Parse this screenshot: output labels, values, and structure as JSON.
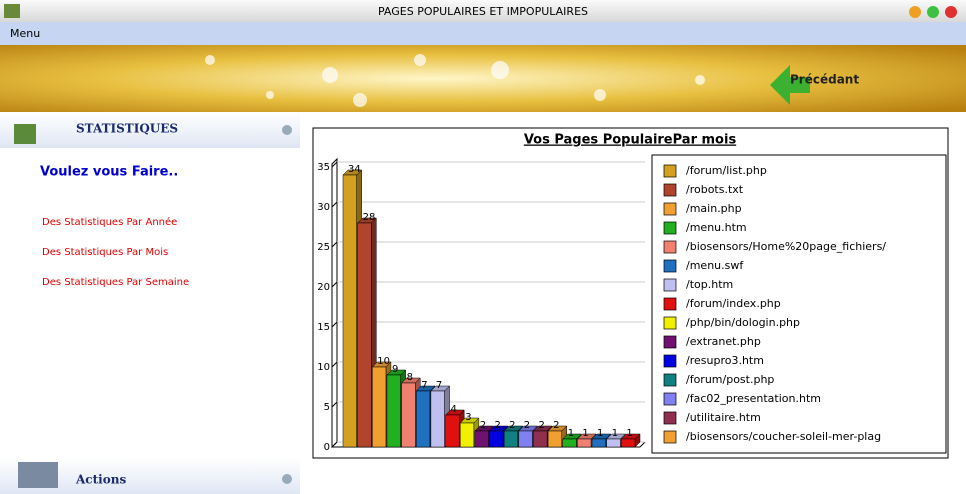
{
  "window": {
    "title": "PAGES POPULAIRES ET IMPOPULAIRES"
  },
  "menu": "Menu",
  "banner": {
    "back_button": "Précédant"
  },
  "sidebar": {
    "section": "STATISTIQUES",
    "heading": "Voulez vous Faire..",
    "links": [
      "Des Statistiques Par Année",
      "Des Statistiques Par Mois",
      "Des Statistiques Par Semaine"
    ],
    "actions": "Actions"
  },
  "chart_data": {
    "type": "bar3d",
    "title": "Vos Pages PopulairePar mois",
    "categories": [
      "/forum/list.php",
      "/robots.txt",
      "/main.php",
      "/menu.htm",
      "/biosensors/Home%20page_fichiers/",
      "/menu.swf",
      "/top.htm",
      "/forum/index.php",
      "/php/bin/dologin.php",
      "/extranet.php",
      "/resupro3.htm",
      "/forum/post.php",
      "/fac02_presentation.htm",
      "/utilitaire.htm",
      "/biosensors/coucher-soleil-mer-plag",
      null,
      null,
      null,
      null,
      null
    ],
    "values": [
      34,
      28,
      10,
      9,
      8,
      7,
      7,
      4,
      3,
      2,
      2,
      2,
      2,
      2,
      2,
      1,
      1,
      1,
      1,
      1
    ],
    "colors": [
      "#d4a020",
      "#b0442c",
      "#f0a030",
      "#20b020",
      "#f08070",
      "#2070c0",
      "#c0c0f0",
      "#e01010",
      "#f0f000",
      "#701070",
      "#0000e0",
      "#108080",
      "#8080f0",
      "#903050",
      "#f0a030",
      "#20b020",
      "#f08070",
      "#2070c0",
      "#c0c0f0",
      "#e01010"
    ],
    "ylim": [
      0,
      35
    ],
    "yticks": [
      0,
      5,
      10,
      15,
      20,
      25,
      30,
      35
    ],
    "grid": true
  }
}
